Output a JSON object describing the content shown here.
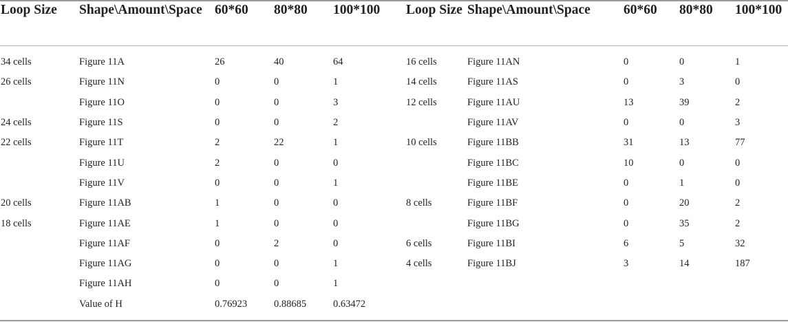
{
  "headers": [
    "Loop Size",
    "Shape\\Amount\\Space",
    "60*60",
    "80*80",
    "100*100",
    "Loop Size",
    "Shape\\Amount\\Space",
    "60*60",
    "80*80",
    "100*100"
  ],
  "rows": [
    [
      "34 cells",
      "Figure 11A",
      "26",
      "40",
      "64",
      "16 cells",
      "Figure 11AN",
      "0",
      "0",
      "1"
    ],
    [
      "26 cells",
      "Figure 11N",
      "0",
      "0",
      "1",
      "14 cells",
      "Figure 11AS",
      "0",
      "3",
      "0"
    ],
    [
      "",
      "Figure 11O",
      "0",
      "0",
      "3",
      "12 cells",
      "Figure 11AU",
      "13",
      "39",
      "2"
    ],
    [
      "24 cells",
      "Figure 11S",
      "0",
      "0",
      "2",
      "",
      "Figure 11AV",
      "0",
      "0",
      "3"
    ],
    [
      "22 cells",
      "Figure 11T",
      "2",
      "22",
      "1",
      "10 cells",
      "Figure 11BB",
      "31",
      "13",
      "77"
    ],
    [
      "",
      "Figure 11U",
      "2",
      "0",
      "0",
      "",
      "Figure 11BC",
      "10",
      "0",
      "0"
    ],
    [
      "",
      "Figure 11V",
      "0",
      "0",
      "1",
      "",
      "Figure 11BE",
      "0",
      "1",
      "0"
    ],
    [
      "20 cells",
      "Figure 11AB",
      "1",
      "0",
      "0",
      "8 cells",
      "Figure 11BF",
      "0",
      "20",
      "2"
    ],
    [
      "18 cells",
      "Figure 11AE",
      "1",
      "0",
      "0",
      "",
      "Figure 11BG",
      "0",
      "35",
      "2"
    ],
    [
      "",
      "Figure 11AF",
      "0",
      "2",
      "0",
      "6 cells",
      "Figure 11BI",
      "6",
      "5",
      "32"
    ],
    [
      "",
      "Figure 11AG",
      "0",
      "0",
      "1",
      "4 cells",
      "Figure 11BJ",
      "3",
      "14",
      "187"
    ],
    [
      "",
      "Figure 11AH",
      "0",
      "0",
      "1",
      "",
      "",
      "",
      "",
      ""
    ],
    [
      "",
      "Value of H",
      "0.76923",
      "0.88685",
      "0.63472",
      "",
      "",
      "",
      "",
      ""
    ]
  ]
}
